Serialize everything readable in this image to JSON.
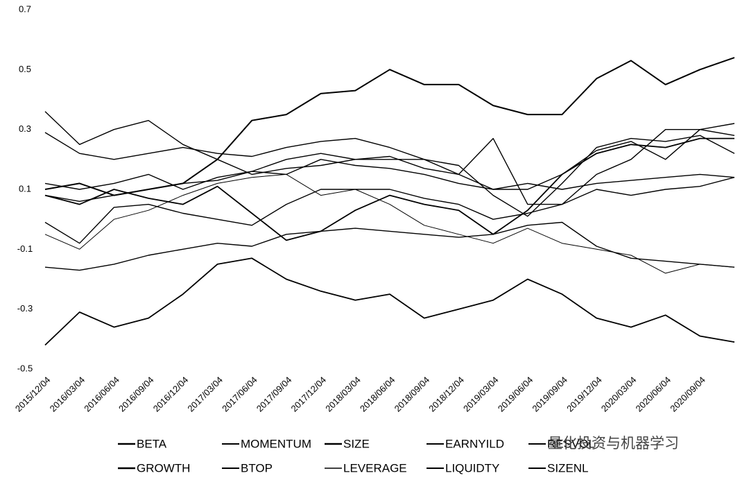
{
  "chart_data": {
    "type": "line",
    "categories": [
      "2015/12/04",
      "2016/03/04",
      "2016/06/04",
      "2016/09/04",
      "2016/12/04",
      "2017/03/04",
      "2017/06/04",
      "2017/09/04",
      "2017/12/04",
      "2018/03/04",
      "2018/06/04",
      "2018/09/04",
      "2018/12/04",
      "2019/03/04",
      "2019/06/04",
      "2019/09/04",
      "2019/12/04",
      "2020/03/04",
      "2020/06/04",
      "2020/09/04",
      null
    ],
    "ylim": [
      -0.5,
      0.7
    ],
    "yticks": [
      -0.5,
      -0.3,
      -0.1,
      0.1,
      0.3,
      0.5,
      0.7
    ],
    "grid": false,
    "watermark": "量化投资与机器学习",
    "series": [
      {
        "name": "BETA",
        "color": "#000000",
        "line_width": 2,
        "values": [
          0.1,
          0.12,
          0.08,
          0.1,
          0.12,
          0.2,
          0.33,
          0.35,
          0.42,
          0.43,
          0.5,
          0.45,
          0.45,
          0.38,
          0.35,
          0.35,
          0.47,
          0.53,
          0.45,
          0.5,
          0.54
        ]
      },
      {
        "name": "MOMENTUM",
        "color": "#000000",
        "line_width": 1.4,
        "values": [
          0.36,
          0.25,
          0.3,
          0.33,
          0.25,
          0.2,
          0.15,
          0.17,
          0.18,
          0.2,
          0.21,
          0.17,
          0.15,
          0.1,
          0.1,
          0.15,
          0.23,
          0.26,
          0.2,
          0.3,
          0.32
        ]
      },
      {
        "name": "SIZE",
        "color": "#000000",
        "line_width": 1.8,
        "values": [
          -0.42,
          -0.31,
          -0.36,
          -0.33,
          -0.25,
          -0.15,
          -0.13,
          -0.2,
          -0.24,
          -0.27,
          -0.25,
          -0.33,
          -0.3,
          -0.27,
          -0.2,
          -0.25,
          -0.33,
          -0.36,
          -0.32,
          -0.39,
          -0.41
        ]
      },
      {
        "name": "EARNYILD",
        "color": "#000000",
        "line_width": 1.4,
        "values": [
          0.12,
          0.1,
          0.12,
          0.15,
          0.1,
          0.14,
          0.16,
          0.15,
          0.2,
          0.18,
          0.17,
          0.15,
          0.12,
          0.1,
          0.12,
          0.1,
          0.12,
          0.13,
          0.14,
          0.15,
          0.14
        ]
      },
      {
        "name": "RESVOL",
        "color": "#000000",
        "line_width": 1.4,
        "values": [
          0.29,
          0.22,
          0.2,
          0.22,
          0.24,
          0.22,
          0.21,
          0.24,
          0.26,
          0.27,
          0.24,
          0.2,
          0.15,
          0.27,
          0.05,
          0.05,
          0.15,
          0.2,
          0.3,
          0.3,
          0.28
        ]
      },
      {
        "name": "GROWTH",
        "color": "#000000",
        "line_width": 1.8,
        "values": [
          0.08,
          0.05,
          0.1,
          0.07,
          0.05,
          0.11,
          0.02,
          -0.07,
          -0.04,
          0.03,
          0.08,
          0.05,
          0.03,
          -0.05,
          0.03,
          0.15,
          0.22,
          0.25,
          0.24,
          0.27,
          0.27
        ]
      },
      {
        "name": "BTOP",
        "color": "#000000",
        "line_width": 1.4,
        "values": [
          -0.01,
          -0.08,
          0.04,
          0.05,
          0.02,
          0.0,
          -0.02,
          0.05,
          0.1,
          0.1,
          0.1,
          0.07,
          0.05,
          0.0,
          0.02,
          0.05,
          0.1,
          0.08,
          0.1,
          0.11,
          0.14
        ]
      },
      {
        "name": "LEVERAGE",
        "color": "#000000",
        "line_width": 1,
        "values": [
          -0.05,
          -0.1,
          0.0,
          0.03,
          0.08,
          0.12,
          0.14,
          0.15,
          0.08,
          0.1,
          0.05,
          -0.02,
          -0.05,
          -0.08,
          -0.03,
          -0.08,
          -0.1,
          -0.12,
          -0.18,
          -0.15,
          -0.16
        ]
      },
      {
        "name": "LIQUIDTY",
        "color": "#000000",
        "line_width": 1.4,
        "values": [
          0.08,
          0.06,
          0.08,
          0.1,
          0.12,
          0.13,
          0.16,
          0.2,
          0.22,
          0.2,
          0.2,
          0.2,
          0.18,
          0.08,
          0.01,
          0.12,
          0.24,
          0.27,
          0.26,
          0.28,
          0.22
        ]
      },
      {
        "name": "SIZENL",
        "color": "#000000",
        "line_width": 1.4,
        "values": [
          -0.16,
          -0.17,
          -0.15,
          -0.12,
          -0.1,
          -0.08,
          -0.09,
          -0.05,
          -0.04,
          -0.03,
          -0.04,
          -0.05,
          -0.06,
          -0.05,
          -0.02,
          -0.01,
          -0.09,
          -0.13,
          -0.14,
          -0.15,
          -0.16
        ]
      }
    ]
  }
}
